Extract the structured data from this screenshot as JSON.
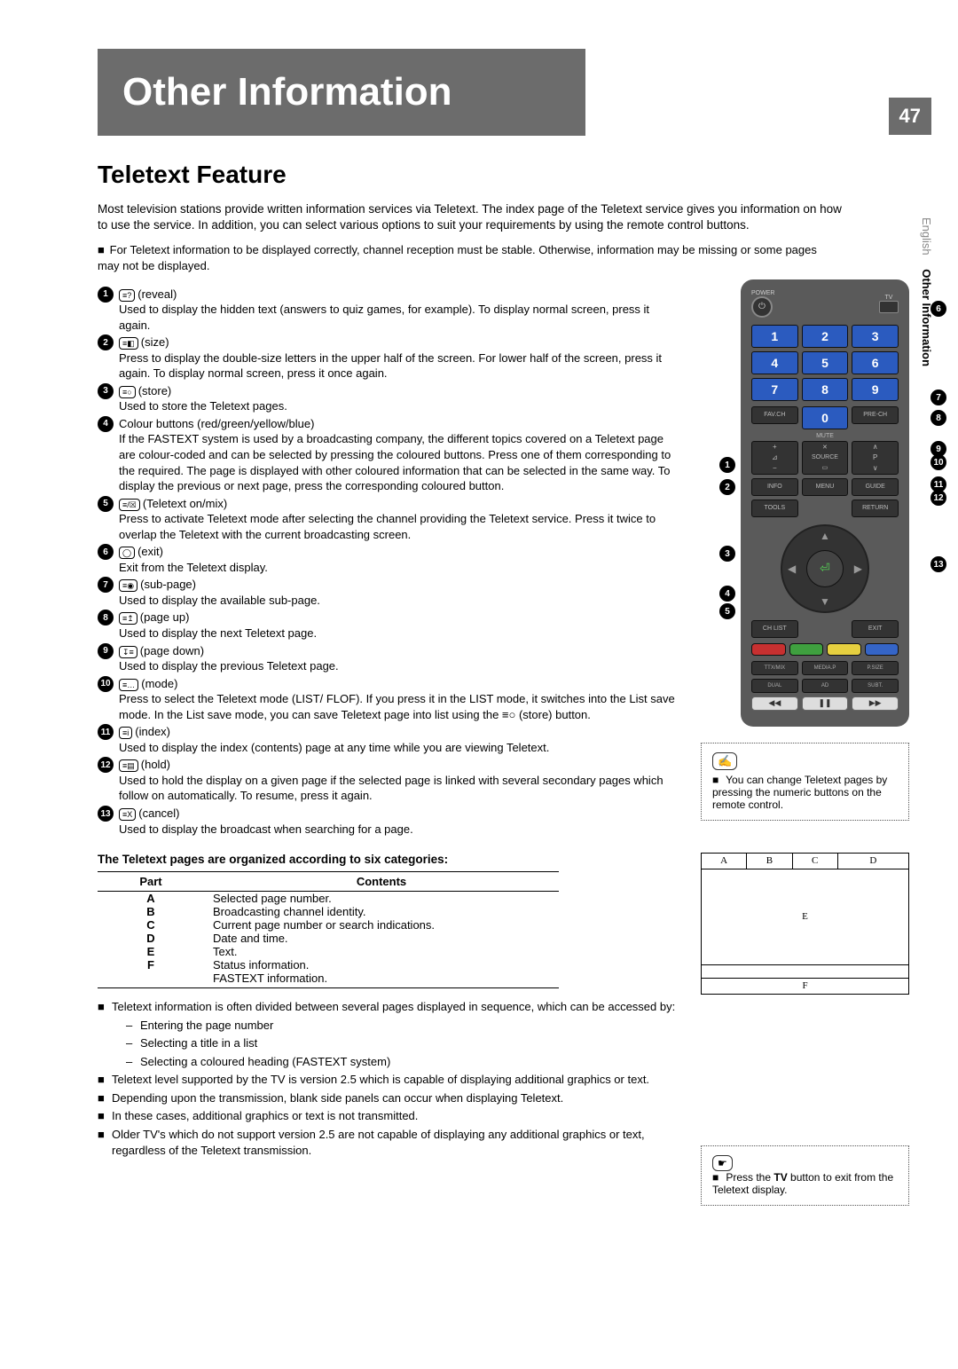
{
  "page_number": "47",
  "side_label_lang": "English",
  "side_label_section": "Other Information",
  "header_title": "Other Information",
  "section_title": "Teletext Feature",
  "intro": "Most television stations provide written information services via Teletext. The index page of the Teletext service gives you information on how to use the service. In addition, you can select various options to suit your requirements by using the remote control buttons.",
  "note_main": "For Teletext information to be displayed correctly, channel reception must be stable. Otherwise, information may be missing or some pages may not be displayed.",
  "items": [
    {
      "num": "1",
      "icon": "≡?",
      "label": "(reveal)",
      "desc": "Used to display the hidden text (answers to quiz games, for example). To display normal screen, press it again."
    },
    {
      "num": "2",
      "icon": "≡◧",
      "label": "(size)",
      "desc": "Press to display the double-size letters in the upper half of the screen. For lower half of the screen, press it again. To display normal screen, press it once again."
    },
    {
      "num": "3",
      "icon": "≡○",
      "label": "(store)",
      "desc": "Used to store the Teletext pages."
    },
    {
      "num": "4",
      "icon": "",
      "label": "Colour buttons (red/green/yellow/blue)",
      "desc": "If the FASTEXT system is used by a broadcasting company, the different topics covered on a Teletext page are colour-coded and can be selected by pressing the coloured buttons. Press one of them corresponding to the required. The page is displayed with other coloured information that can be selected in the same way. To display the previous or next page, press the corresponding coloured button."
    },
    {
      "num": "5",
      "icon": "≡/☒",
      "label": "(Teletext on/mix)",
      "desc": "Press to activate Teletext mode after selecting the channel providing the Teletext service. Press it twice to overlap the Teletext with the current broadcasting screen."
    },
    {
      "num": "6",
      "icon": "◯",
      "label": "(exit)",
      "desc": "Exit from the Teletext display."
    },
    {
      "num": "7",
      "icon": "≡◉",
      "label": "(sub-page)",
      "desc": "Used to display the available sub-page."
    },
    {
      "num": "8",
      "icon": "≡↥",
      "label": "(page up)",
      "desc": "Used to display the next Teletext page."
    },
    {
      "num": "9",
      "icon": "↧≡",
      "label": "(page down)",
      "desc": "Used to display the previous Teletext page."
    },
    {
      "num": "10",
      "icon": "≡…",
      "label": "(mode)",
      "desc": "Press to select the Teletext mode (LIST/ FLOF). If you press it in the LIST mode, it switches into the List save mode. In the List save mode, you can save Teletext page into list using the ≡○ (store) button."
    },
    {
      "num": "11",
      "icon": "≡i",
      "label": "(index)",
      "desc": "Used to display the index (contents) page at any time while you are viewing Teletext."
    },
    {
      "num": "12",
      "icon": "≡▤",
      "label": "(hold)",
      "desc": "Used to hold the display on a given page if the selected page is linked with several secondary pages which follow on automatically. To resume, press it again."
    },
    {
      "num": "13",
      "icon": "≡X",
      "label": "(cancel)",
      "desc": "Used to display the broadcast when searching for a page."
    }
  ],
  "categories_heading": "The Teletext pages are organized according to six categories:",
  "table": {
    "col1": "Part",
    "col2": "Contents",
    "rows": [
      [
        "A",
        "Selected page number."
      ],
      [
        "B",
        "Broadcasting channel identity."
      ],
      [
        "C",
        "Current page number or search indications."
      ],
      [
        "D",
        "Date and time."
      ],
      [
        "E",
        "Text."
      ],
      [
        "F",
        "Status information."
      ],
      [
        "",
        "FASTEXT information."
      ]
    ]
  },
  "notebox1_text": "You can change Teletext pages by pressing the numeric buttons on the remote control.",
  "notebox2_text": "Press the TV button to exit from the Teletext display.",
  "notebox2_bold": "TV",
  "after_bullets": [
    "Teletext information is often divided between several pages displayed in sequence, which can be accessed by:",
    "Teletext level supported by the TV is version 2.5 which is capable of displaying additional graphics or text.",
    "Depending upon the transmission, blank side panels can occur when displaying Teletext.",
    "In these cases, additional graphics or text is not transmitted.",
    "Older TV's which do not support version 2.5 are not capable of displaying any additional graphics or text, regardless of the Teletext transmission."
  ],
  "after_sub": [
    "Entering the page number",
    "Selecting a title in a list",
    "Selecting a coloured heading (FASTEXT system)"
  ],
  "remote": {
    "nums": [
      "1",
      "2",
      "3",
      "4",
      "5",
      "6",
      "7",
      "8",
      "9",
      "0"
    ],
    "fav": "FAV.CH",
    "prech": "PRE-CH",
    "mute": "MUTE",
    "source": "SOURCE",
    "p": "P",
    "info": "INFO",
    "menu": "MENU",
    "guide": "GUIDE",
    "return": "RETURN",
    "exit": "EXIT",
    "chlist": "CH LIST",
    "tools": "TOOLS",
    "ttx": "TTX/MIX",
    "media": "MEDIA.P",
    "psize": "P.SIZE",
    "dual": "DUAL",
    "ad": "AD",
    "subt": "SUBT.",
    "colors": [
      "#c73030",
      "#3fa03f",
      "#e6d040",
      "#3565c7"
    ]
  },
  "diagram": {
    "a": "A",
    "b": "B",
    "c": "C",
    "d": "D",
    "e": "E",
    "f": "F"
  },
  "side_nums_left": [
    "1",
    "2",
    "3",
    "4",
    "5"
  ],
  "side_nums_right": [
    "6",
    "7",
    "8",
    "9",
    "10",
    "11",
    "12",
    "13"
  ]
}
